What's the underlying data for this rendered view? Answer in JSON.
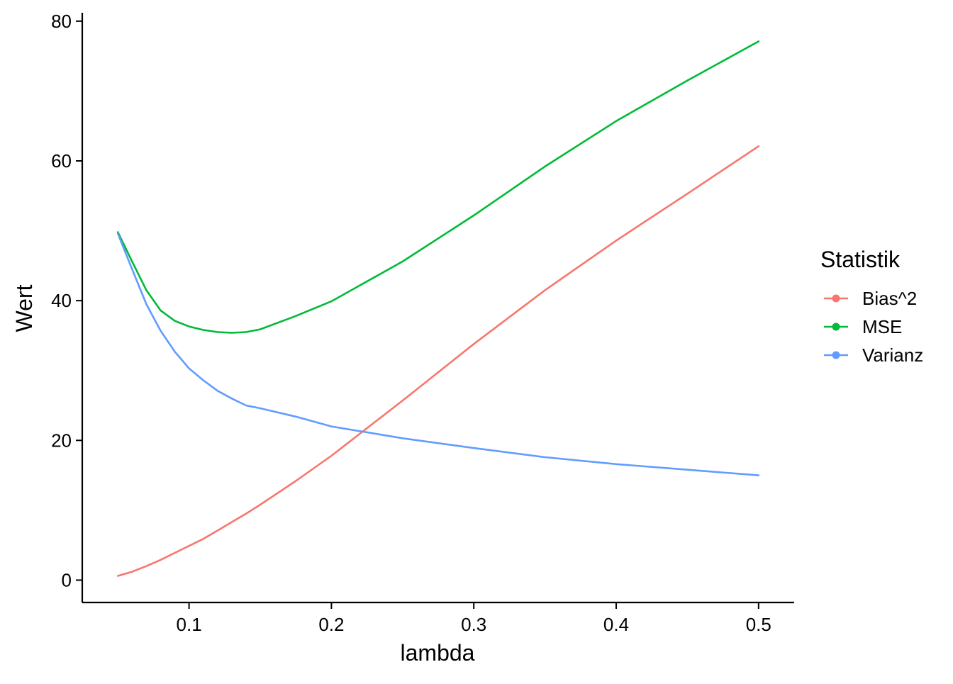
{
  "chart_data": {
    "type": "line",
    "title": "",
    "xlabel": "lambda",
    "ylabel": "Wert",
    "xlim": [
      0.025,
      0.525
    ],
    "ylim": [
      -3.2,
      81.2
    ],
    "xticks": [
      0.1,
      0.2,
      0.3,
      0.4,
      0.5
    ],
    "xtick_labels": [
      "0.1",
      "0.2",
      "0.3",
      "0.4",
      "0.5"
    ],
    "yticks": [
      0,
      20,
      40,
      60,
      80
    ],
    "ytick_labels": [
      "0",
      "20",
      "40",
      "60",
      "80"
    ],
    "grid": false,
    "legend": {
      "title": "Statistik",
      "placement": "right"
    },
    "x": [
      0.05,
      0.06,
      0.07,
      0.08,
      0.09,
      0.1,
      0.11,
      0.12,
      0.13,
      0.14,
      0.15,
      0.175,
      0.2,
      0.25,
      0.3,
      0.35,
      0.4,
      0.45,
      0.5
    ],
    "series": [
      {
        "name": "Bias^2",
        "color": "#F8766D",
        "values": [
          0.6,
          1.2,
          2.0,
          2.9,
          3.9,
          4.9,
          5.9,
          7.1,
          8.3,
          9.5,
          10.8,
          14.2,
          17.8,
          25.7,
          33.8,
          41.5,
          48.6,
          55.3,
          62.1
        ]
      },
      {
        "name": "MSE",
        "color": "#00BA38",
        "values": [
          49.8,
          45.6,
          41.5,
          38.6,
          37.1,
          36.3,
          35.8,
          35.5,
          35.4,
          35.5,
          35.9,
          37.8,
          39.9,
          45.6,
          52.2,
          59.2,
          65.7,
          71.5,
          77.1
        ]
      },
      {
        "name": "Varianz",
        "color": "#619CFF",
        "values": [
          49.6,
          44.5,
          39.5,
          35.7,
          32.7,
          30.3,
          28.6,
          27.1,
          26.0,
          25.0,
          24.6,
          23.4,
          22.0,
          20.3,
          18.9,
          17.6,
          16.6,
          15.8,
          15.0
        ]
      }
    ]
  }
}
